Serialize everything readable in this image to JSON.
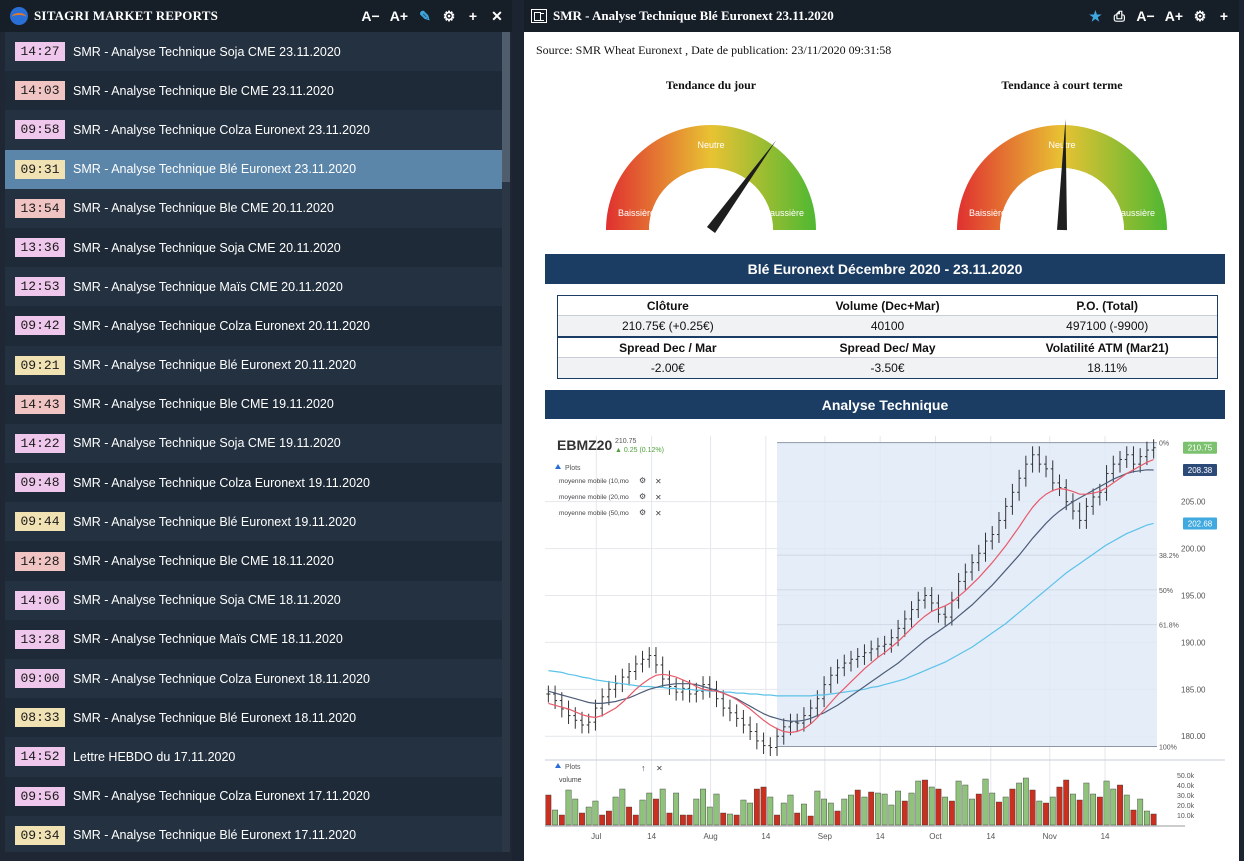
{
  "app": {
    "left_title": "SITAGRI MARKET REPORTS",
    "left_icons": [
      "font-decrease-icon",
      "font-increase-icon",
      "feather-icon",
      "gear-icon",
      "plus-icon",
      "close-icon"
    ],
    "left_icon_glyphs": [
      "A−",
      "A+",
      "✎",
      "⚙",
      "+",
      "✕"
    ]
  },
  "reports": [
    {
      "time": "14:27",
      "title": "SMR - Analyse Technique Soja CME 23.11.2020",
      "color": "#f0c7ec"
    },
    {
      "time": "14:03",
      "title": "SMR - Analyse Technique Ble CME 23.11.2020",
      "color": "#f1c4c4"
    },
    {
      "time": "09:58",
      "title": "SMR - Analyse Technique Colza Euronext 23.11.2020",
      "color": "#f0c7ec"
    },
    {
      "time": "09:31",
      "title": "SMR - Analyse Technique Blé Euronext 23.11.2020",
      "color": "#f1e2b4"
    },
    {
      "time": "13:54",
      "title": "SMR - Analyse Technique Ble CME 20.11.2020",
      "color": "#f1c4c4"
    },
    {
      "time": "13:36",
      "title": "SMR - Analyse Technique Soja CME 20.11.2020",
      "color": "#f0c7ec"
    },
    {
      "time": "12:53",
      "title": "SMR - Analyse Technique Maïs CME 20.11.2020",
      "color": "#f0c7ec"
    },
    {
      "time": "09:42",
      "title": "SMR - Analyse Technique Colza Euronext 20.11.2020",
      "color": "#f0c7ec"
    },
    {
      "time": "09:21",
      "title": "SMR - Analyse Technique Blé Euronext 20.11.2020",
      "color": "#f1e2b4"
    },
    {
      "time": "14:43",
      "title": "SMR - Analyse Technique Ble CME 19.11.2020",
      "color": "#f1c4c4"
    },
    {
      "time": "14:22",
      "title": "SMR - Analyse Technique Soja CME 19.11.2020",
      "color": "#f0c7ec"
    },
    {
      "time": "09:48",
      "title": "SMR - Analyse Technique Colza Euronext 19.11.2020",
      "color": "#f0c7ec"
    },
    {
      "time": "09:44",
      "title": "SMR - Analyse Technique Blé Euronext 19.11.2020",
      "color": "#f1e2b4"
    },
    {
      "time": "14:28",
      "title": "SMR - Analyse Technique Ble CME 18.11.2020",
      "color": "#f1c4c4"
    },
    {
      "time": "14:06",
      "title": "SMR - Analyse Technique Soja CME 18.11.2020",
      "color": "#f0c7ec"
    },
    {
      "time": "13:28",
      "title": "SMR - Analyse Technique Maïs CME 18.11.2020",
      "color": "#f0c7ec"
    },
    {
      "time": "09:00",
      "title": "SMR - Analyse Technique Colza Euronext 18.11.2020",
      "color": "#f0c7ec"
    },
    {
      "time": "08:33",
      "title": "SMR - Analyse Technique Blé Euronext 18.11.2020",
      "color": "#f1e2b4"
    },
    {
      "time": "14:52",
      "title": "Lettre HEBDO du 17.11.2020",
      "color": "#f0c7ec"
    },
    {
      "time": "09:56",
      "title": "SMR - Analyse Technique Colza Euronext 17.11.2020",
      "color": "#f0c7ec"
    },
    {
      "time": "09:34",
      "title": "SMR - Analyse Technique Blé Euronext 17.11.2020",
      "color": "#f1e2b4"
    }
  ],
  "selected_index": 3,
  "detail": {
    "title": "SMR - Analyse Technique Blé Euronext 23.11.2020",
    "icons": [
      "star-icon",
      "print-icon",
      "font-decrease-icon",
      "font-increase-icon",
      "gear-icon",
      "plus-icon"
    ],
    "icon_glyphs": [
      "★",
      "⎙",
      "A−",
      "A+",
      "⚙",
      "+"
    ],
    "source": "Source: SMR Wheat Euronext , Date de publication: 23/11/2020 09:31:58",
    "gauge_day": {
      "title": "Tendance du jour",
      "label_left": "Baissière",
      "label_mid": "Neutre",
      "label_right": "Haussière",
      "needle_fraction": 0.7
    },
    "gauge_short": {
      "title": "Tendance à court terme",
      "label_left": "Baissière",
      "label_mid": "Neutre",
      "label_right": "Haussière",
      "needle_fraction": 0.51
    },
    "market_banner": "Blé Euronext Décembre 2020 - 23.11.2020",
    "table1_headers": [
      "Clôture",
      "Volume (Dec+Mar)",
      "P.O. (Total)"
    ],
    "table1_values": [
      "210.75€ (+0.25€)",
      "40100",
      "497100 (-9900)"
    ],
    "table2_headers": [
      "Spread Dec / Mar",
      "Spread Dec/ May",
      "Volatilité ATM (Mar21)"
    ],
    "table2_values": [
      "-2.00€",
      "-3.50€",
      "18.11%"
    ],
    "analysis_banner": "Analyse Technique"
  },
  "chart_data": {
    "type": "line",
    "symbol": "EBMZ20",
    "last": "210.75",
    "change": "0.25 (0.12%)",
    "plots_label": "Plots",
    "legend": [
      "moyenne mobile (10,mo",
      "moyenne mobile (20,mo",
      "moyenne mobile (50,mo"
    ],
    "volume_label": "volume",
    "price_ticks": [
      "205.00",
      "200.00",
      "195.00",
      "190.00",
      "185.00",
      "180.00"
    ],
    "price_tick_values": [
      205,
      200,
      195,
      190,
      185,
      180
    ],
    "fib_labels": [
      "0%",
      "38.2%",
      "50%",
      "61.8%",
      "100%"
    ],
    "fib_values": [
      211.3,
      199.3,
      195.6,
      191.9,
      178.9
    ],
    "price_tags": [
      {
        "label": "210.75",
        "value": 210.75,
        "color": "#7cc26e"
      },
      {
        "label": "208.38",
        "value": 208.38,
        "color": "#2c4a78"
      },
      {
        "label": "202.68",
        "value": 202.68,
        "color": "#3fa9e0"
      }
    ],
    "volume_ticks": [
      "50.0k",
      "40.0k",
      "30.0k",
      "20.0k",
      "10.0k"
    ],
    "volume_tick_values": [
      50000,
      40000,
      30000,
      20000,
      10000
    ],
    "x_labels": [
      "Jul",
      "14",
      "Aug",
      "14",
      "Sep",
      "14",
      "Oct",
      "14",
      "Nov",
      "14"
    ],
    "x_label_days": [
      13,
      28,
      44,
      59,
      75,
      90,
      105,
      120,
      136,
      151
    ],
    "ylim": [
      178,
      212
    ],
    "close": [
      184.5,
      183.8,
      182.9,
      182.2,
      181.7,
      181.2,
      181.5,
      183.0,
      184.2,
      185.0,
      185.6,
      186.3,
      186.9,
      187.7,
      188.2,
      188.6,
      187.6,
      186.1,
      185.3,
      184.7,
      185.1,
      184.5,
      184.8,
      185.5,
      185.0,
      184.0,
      183.0,
      182.5,
      181.9,
      181.2,
      180.5,
      179.5,
      179.0,
      178.8,
      180.0,
      181.0,
      181.5,
      181.4,
      182.2,
      183.0,
      184.0,
      185.5,
      186.5,
      187.3,
      187.8,
      188.2,
      188.5,
      188.9,
      189.3,
      189.6,
      189.8,
      190.5,
      191.5,
      192.5,
      193.5,
      194.5,
      195.0,
      194.2,
      193.0,
      192.7,
      194.5,
      196.5,
      197.5,
      198.5,
      199.5,
      200.8,
      201.5,
      203.0,
      204.5,
      206.0,
      207.5,
      209.0,
      210.0,
      209.0,
      208.5,
      207.0,
      206.5,
      205.0,
      204.0,
      203.0,
      204.5,
      205.5,
      206.0,
      208.0,
      209.0,
      209.5,
      210.0,
      209.0,
      209.8,
      210.5,
      210.75
    ],
    "ma10": [
      183.5,
      183.3,
      183.1,
      182.9,
      182.6,
      182.3,
      182.1,
      182.0,
      182.2,
      182.6,
      183.0,
      183.6,
      184.3,
      185.0,
      185.6,
      186.1,
      186.5,
      186.6,
      186.5,
      186.3,
      186.0,
      185.7,
      185.3,
      185.0,
      184.9,
      184.8,
      184.6,
      184.3,
      183.9,
      183.4,
      182.9,
      182.3,
      181.7,
      181.2,
      180.8,
      180.5,
      180.4,
      180.5,
      180.8,
      181.3,
      182.0,
      182.8,
      183.6,
      184.4,
      185.1,
      185.8,
      186.5,
      187.2,
      187.8,
      188.4,
      188.9,
      189.5,
      190.1,
      190.8,
      191.5,
      192.2,
      192.8,
      193.3,
      193.6,
      193.9,
      194.3,
      194.9,
      195.5,
      196.2,
      196.9,
      197.7,
      198.5,
      199.4,
      200.3,
      201.3,
      202.3,
      203.4,
      204.4,
      205.2,
      205.8,
      206.2,
      206.4,
      206.3,
      206.1,
      205.8,
      205.8,
      205.9,
      206.1,
      206.5,
      207.0,
      207.5,
      208.0,
      208.4,
      208.8,
      209.2,
      209.5
    ],
    "ma20": [
      184.8,
      184.6,
      184.4,
      184.2,
      184.0,
      183.8,
      183.6,
      183.5,
      183.5,
      183.6,
      183.7,
      183.9,
      184.1,
      184.4,
      184.7,
      185.0,
      185.2,
      185.4,
      185.5,
      185.6,
      185.6,
      185.6,
      185.5,
      185.3,
      185.1,
      184.9,
      184.6,
      184.3,
      184.0,
      183.6,
      183.2,
      182.8,
      182.4,
      182.1,
      181.9,
      181.7,
      181.6,
      181.6,
      181.7,
      181.9,
      182.2,
      182.5,
      182.9,
      183.3,
      183.8,
      184.3,
      184.8,
      185.3,
      185.8,
      186.3,
      186.8,
      187.3,
      187.8,
      188.4,
      189.0,
      189.6,
      190.2,
      190.7,
      191.2,
      191.7,
      192.2,
      192.8,
      193.4,
      194.0,
      194.7,
      195.4,
      196.1,
      196.9,
      197.7,
      198.5,
      199.3,
      200.2,
      201.1,
      201.9,
      202.7,
      203.4,
      204.0,
      204.5,
      205.0,
      205.4,
      205.8,
      206.2,
      206.6,
      207.0,
      207.4,
      207.7,
      208.0,
      208.2,
      208.3,
      208.4,
      208.38
    ],
    "ma50": [
      187.0,
      186.9,
      186.8,
      186.6,
      186.5,
      186.3,
      186.2,
      186.0,
      185.9,
      185.8,
      185.7,
      185.6,
      185.5,
      185.4,
      185.3,
      185.3,
      185.2,
      185.2,
      185.1,
      185.1,
      185.0,
      185.0,
      184.9,
      184.9,
      184.8,
      184.8,
      184.7,
      184.7,
      184.6,
      184.6,
      184.5,
      184.5,
      184.4,
      184.4,
      184.3,
      184.3,
      184.3,
      184.3,
      184.3,
      184.3,
      184.4,
      184.4,
      184.5,
      184.6,
      184.7,
      184.8,
      184.9,
      185.0,
      185.2,
      185.3,
      185.5,
      185.7,
      185.9,
      186.1,
      186.4,
      186.7,
      187.0,
      187.3,
      187.6,
      187.9,
      188.3,
      188.7,
      189.1,
      189.5,
      190.0,
      190.5,
      191.0,
      191.5,
      192.0,
      192.6,
      193.2,
      193.8,
      194.4,
      195.0,
      195.6,
      196.2,
      196.8,
      197.4,
      197.9,
      198.4,
      198.9,
      199.4,
      199.9,
      200.4,
      200.8,
      201.2,
      201.6,
      201.9,
      202.2,
      202.5,
      202.68
    ],
    "volume": [
      30000,
      15000,
      10000,
      35000,
      26000,
      12000,
      18000,
      24000,
      10000,
      14000,
      28000,
      36000,
      18000,
      10000,
      25000,
      32000,
      26000,
      36000,
      12000,
      32000,
      10000,
      10000,
      26000,
      36000,
      18000,
      31000,
      12000,
      11000,
      10000,
      25000,
      22000,
      36000,
      38000,
      28000,
      10000,
      22000,
      30000,
      12000,
      21000,
      9000,
      34000,
      26000,
      22000,
      14000,
      26000,
      30000,
      35000,
      28000,
      33000,
      32000,
      31000,
      20000,
      34000,
      24000,
      32000,
      44000,
      45000,
      38000,
      36000,
      28000,
      24000,
      44000,
      40000,
      26000,
      31000,
      46000,
      32000,
      23000,
      28000,
      36000,
      42000,
      47000,
      35000,
      24000,
      22000,
      28000,
      38000,
      45000,
      31000,
      25000,
      42000,
      31000,
      28000,
      44000,
      36000,
      40000,
      30000,
      15000,
      26000,
      14000,
      11000
    ],
    "volume_up": [
      false,
      true,
      false,
      true,
      true,
      false,
      true,
      true,
      false,
      false,
      true,
      true,
      false,
      false,
      true,
      true,
      false,
      true,
      false,
      true,
      false,
      false,
      true,
      true,
      true,
      true,
      false,
      true,
      false,
      true,
      true,
      false,
      false,
      true,
      false,
      true,
      true,
      false,
      true,
      false,
      true,
      true,
      true,
      false,
      true,
      true,
      false,
      true,
      false,
      true,
      true,
      true,
      true,
      false,
      true,
      true,
      false,
      true,
      false,
      true,
      false,
      true,
      true,
      true,
      false,
      true,
      true,
      false,
      true,
      false,
      true,
      true,
      false,
      true,
      false,
      true,
      false,
      false,
      true,
      false,
      true,
      true,
      false,
      true,
      true,
      false,
      true,
      false,
      true,
      true,
      false
    ]
  }
}
